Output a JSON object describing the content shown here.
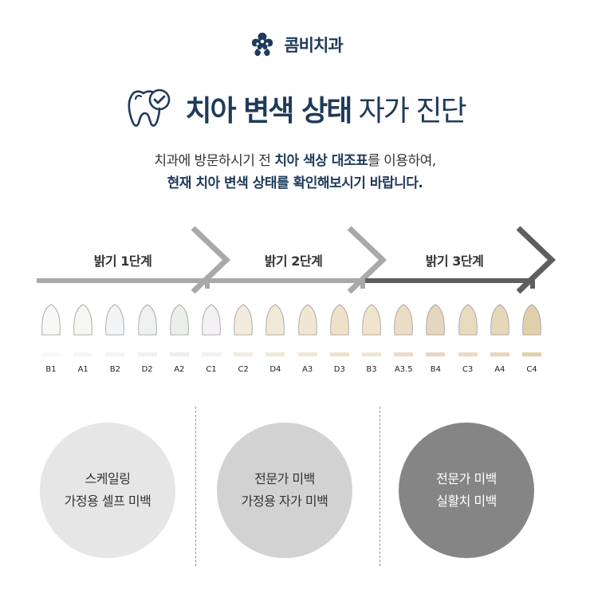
{
  "header": {
    "logo_text": "콤비치과"
  },
  "title": {
    "bold": "치아 변색 상태",
    "light": "자가 진단"
  },
  "description": {
    "line1_pre": "치과에 방문하시기 전 ",
    "line1_bold": "치아 색상 대조표",
    "line1_post": "를 이용하여,",
    "line2": "현재 치아 변색 상태를 확인해보시기 바랍니다."
  },
  "stages": [
    {
      "label": "밝기 1단계",
      "color": "#a9a9a9"
    },
    {
      "label": "밝기 2단계",
      "color": "#a9a9a9"
    },
    {
      "label": "밝기 3단계",
      "color": "#5e5e5e"
    }
  ],
  "shades": [
    {
      "code": "B1",
      "color": "#f8f8f6"
    },
    {
      "code": "A1",
      "color": "#f6f6f3"
    },
    {
      "code": "B2",
      "color": "#f2f4f5"
    },
    {
      "code": "D2",
      "color": "#eef1f0"
    },
    {
      "code": "A2",
      "color": "#eaefea"
    },
    {
      "code": "C1",
      "color": "#f3f1f3"
    },
    {
      "code": "C2",
      "color": "#f3ebdd"
    },
    {
      "code": "D4",
      "color": "#f1e8d6"
    },
    {
      "code": "A3",
      "color": "#f1e6d1"
    },
    {
      "code": "D3",
      "color": "#efe1c8"
    },
    {
      "code": "B3",
      "color": "#f1e4ce"
    },
    {
      "code": "A3.5",
      "color": "#ebddc5"
    },
    {
      "code": "B4",
      "color": "#e6d6bf"
    },
    {
      "code": "C3",
      "color": "#e9dbc0"
    },
    {
      "code": "A4",
      "color": "#e6d7b8"
    },
    {
      "code": "C4",
      "color": "#e2d0ac"
    }
  ],
  "methods": [
    {
      "line1": "스케일링",
      "line2": "가정용 셀프 미백",
      "bg": "#e6e6e6",
      "fg": "#333333"
    },
    {
      "line1": "전문가 미백",
      "line2": "가정용 자가 미백",
      "bg": "#d2d2d2",
      "fg": "#333333"
    },
    {
      "line1": "전문가 미백",
      "line2": "실활치 미백",
      "bg": "#858585",
      "fg": "#ffffff"
    }
  ]
}
